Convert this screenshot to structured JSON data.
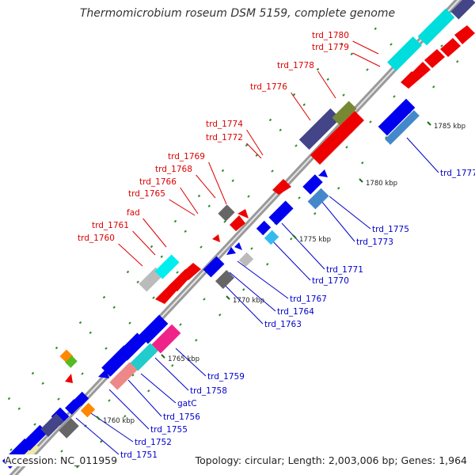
{
  "title": "Thermomicrobium roseum DSM 5159, complete genome",
  "footer": {
    "accession": "Accession: NC_011959",
    "info": "Topology: circular; Length: 2,003,006 bp; Genes: 1,964"
  },
  "colors": {
    "backbone": "#999999",
    "forward_label": "#dd0000",
    "reverse_label": "#0000cc",
    "tick": "#2e8b2e"
  },
  "scale_labels": [
    {
      "kbp": 1760,
      "text": "1760 kbp"
    },
    {
      "kbp": 1765,
      "text": "1765 kbp"
    },
    {
      "kbp": 1770,
      "text": "1770 kbp"
    },
    {
      "kbp": 1775,
      "text": "1775 kbp"
    },
    {
      "kbp": 1780,
      "text": "1780 kbp"
    },
    {
      "kbp": 1785,
      "text": "1785 kbp"
    }
  ],
  "forward_labels": [
    "trd_1760",
    "trd_1761",
    "fad",
    "trd_1765",
    "trd_1766",
    "trd_1768",
    "trd_1769",
    "trd_1772",
    "trd_1774",
    "trd_1776",
    "trd_1778",
    "trd_1779",
    "trd_1780"
  ],
  "reverse_labels": [
    "trd_1751",
    "trd_1752",
    "trd_1755",
    "trd_1756",
    "gatC",
    "trd_1758",
    "trd_1759",
    "trd_1763",
    "trd_1764",
    "trd_1767",
    "trd_1770",
    "trd_1771",
    "trd_1773",
    "trd_1775",
    "trd_1777"
  ]
}
